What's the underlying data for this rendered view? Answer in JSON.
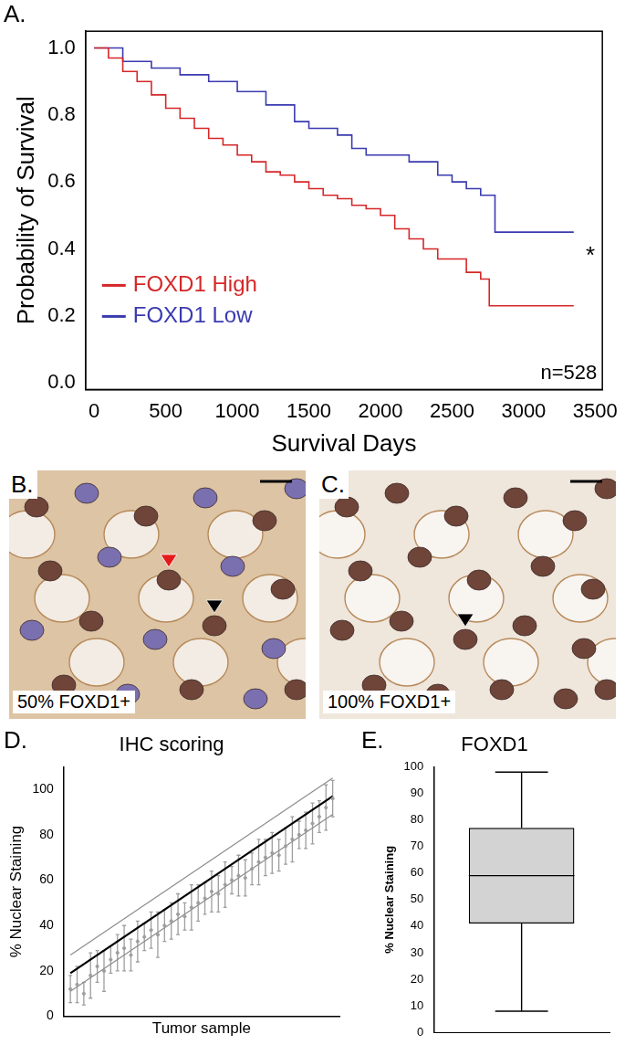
{
  "chart_data": [
    {
      "panel": "A.",
      "type": "line",
      "x_label": "Survival Days",
      "y_label": "Probability of Survival",
      "xlim": [
        -60,
        3550
      ],
      "xticks": [
        0,
        500,
        1000,
        1500,
        2000,
        2500,
        3000,
        3500
      ],
      "ylim": [
        -0.02,
        1.05
      ],
      "yticks": [
        {
          "value": 0,
          "label": "0.0"
        },
        0.2,
        0.4,
        0.6,
        0.8,
        {
          "value": 1,
          "label": "1.0"
        }
      ],
      "line_style": "step",
      "legend": "lower left",
      "annotations": [
        "*",
        "n=528"
      ],
      "series": [
        {
          "name": "FOXD1 High",
          "color": "#d62728",
          "x": [
            0,
            100,
            200,
            300,
            400,
            500,
            600,
            700,
            800,
            900,
            1000,
            1100,
            1200,
            1300,
            1400,
            1500,
            1600,
            1700,
            1800,
            1900,
            2000,
            2100,
            2200,
            2300,
            2400,
            2500,
            2600,
            2700,
            2760,
            3350
          ],
          "values": [
            1.0,
            0.97,
            0.93,
            0.9,
            0.86,
            0.82,
            0.79,
            0.76,
            0.73,
            0.71,
            0.68,
            0.66,
            0.63,
            0.62,
            0.6,
            0.58,
            0.56,
            0.55,
            0.53,
            0.52,
            0.5,
            0.46,
            0.43,
            0.4,
            0.37,
            0.37,
            0.33,
            0.31,
            0.23,
            0.23
          ]
        },
        {
          "name": "FOXD1 Low",
          "color": "#3a3ab0",
          "x": [
            0,
            200,
            400,
            600,
            800,
            1000,
            1200,
            1400,
            1500,
            1700,
            1800,
            1900,
            2200,
            2400,
            2500,
            2600,
            2700,
            2800,
            3350
          ],
          "values": [
            1.0,
            0.96,
            0.94,
            0.92,
            0.9,
            0.87,
            0.83,
            0.78,
            0.76,
            0.74,
            0.7,
            0.68,
            0.66,
            0.62,
            0.6,
            0.58,
            0.56,
            0.45,
            0.45
          ]
        }
      ]
    },
    {
      "panel": "D.",
      "type": "scatter",
      "title": "IHC scoring",
      "x_label": "Tumor sample",
      "y_label": "% Nuclear Staining",
      "x": [
        1,
        2,
        3,
        4,
        5,
        6,
        7,
        8,
        9,
        10,
        11,
        12,
        13,
        14,
        15,
        16,
        17,
        18,
        19,
        20,
        21,
        22,
        23,
        24,
        25,
        26,
        27,
        28,
        29,
        30,
        31,
        32,
        33,
        34,
        35,
        36,
        37,
        38,
        39,
        40
      ],
      "values": [
        12,
        14,
        10,
        18,
        22,
        20,
        25,
        28,
        30,
        27,
        33,
        35,
        38,
        36,
        40,
        42,
        45,
        44,
        48,
        50,
        52,
        55,
        54,
        58,
        60,
        62,
        61,
        65,
        68,
        70,
        72,
        71,
        75,
        78,
        80,
        82,
        85,
        88,
        92,
        96
      ],
      "error": [
        6,
        8,
        5,
        10,
        7,
        9,
        6,
        8,
        10,
        7,
        9,
        6,
        8,
        10,
        7,
        8,
        9,
        6,
        10,
        8,
        7,
        9,
        8,
        10,
        6,
        9,
        8,
        7,
        10,
        8,
        9,
        7,
        8,
        10,
        6,
        8,
        9,
        7,
        10,
        8
      ],
      "color": "#9e9e9e",
      "xlim": [
        0,
        41
      ],
      "ylim": [
        0,
        110
      ],
      "yticks": [
        0,
        20,
        40,
        60,
        80,
        100
      ],
      "tick_labels": "y",
      "series": [
        {
          "type": "line",
          "color": "#000000",
          "x": [
            1,
            40
          ],
          "values": [
            19,
            97
          ]
        },
        {
          "type": "line",
          "color": "#8c8c8c",
          "x": [
            1,
            40
          ],
          "values": [
            27,
            105
          ]
        },
        {
          "type": "line",
          "color": "#8c8c8c",
          "x": [
            1,
            40
          ],
          "values": [
            11,
            89
          ]
        }
      ]
    },
    {
      "panel": "E.",
      "type": "box",
      "title": "FOXD1",
      "y_label": "% Nuclear Staining",
      "categories": [
        null
      ],
      "stats": {
        "min": 8,
        "q1": 41,
        "median": 59,
        "q3": 77,
        "max": 98
      },
      "color": "#d3d3d3",
      "ylim": [
        0,
        100
      ],
      "yticks": [
        0,
        10,
        20,
        30,
        40,
        50,
        60,
        70,
        80,
        90,
        100
      ],
      "tick_labels": "y"
    }
  ],
  "images": [
    {
      "panel": "B.",
      "label": "50% FOXD1+"
    },
    {
      "panel": "C.",
      "label": "100% FOXD1+"
    }
  ]
}
